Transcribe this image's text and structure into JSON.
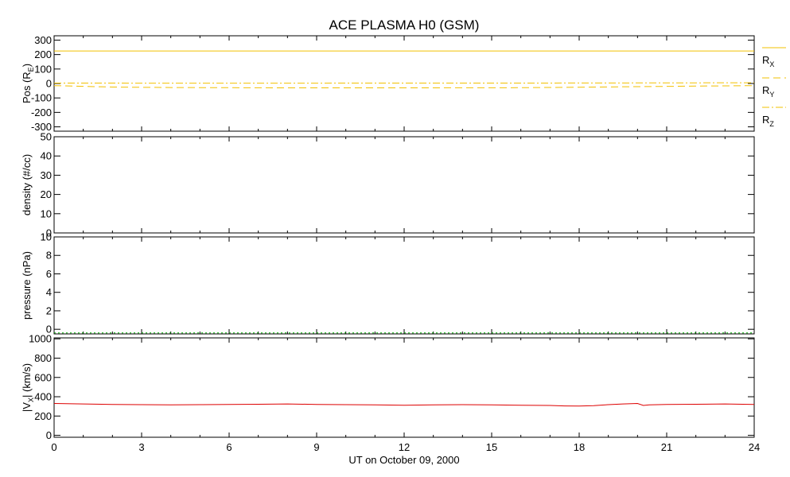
{
  "title": "ACE PLASMA H0 (GSM)",
  "xlabel": "UT on October 09, 2000",
  "x_ticks": [
    "0",
    "3",
    "6",
    "9",
    "12",
    "15",
    "18",
    "21",
    "24"
  ],
  "colors": {
    "gold": "#f2c000",
    "green": "#00b000",
    "red": "#dd0000"
  },
  "chart_data": [
    {
      "type": "line",
      "panel": "position",
      "ylabel": "Pos (R",
      "ylabel_sub": "E",
      "ylabel_tail": ")",
      "xlim": [
        0,
        24
      ],
      "ylim": [
        -330,
        330
      ],
      "y_ticks": [
        "300",
        "200",
        "100",
        "0",
        "-100",
        "-200",
        "-300"
      ],
      "y_tick_values": [
        300,
        200,
        100,
        0,
        -100,
        -200,
        -300
      ],
      "series": [
        {
          "name": "R",
          "sub": "X",
          "style": "solid",
          "color": "#f2c000",
          "x": [
            0,
            6,
            12,
            18,
            24
          ],
          "y": [
            225,
            225,
            225,
            225,
            225
          ]
        },
        {
          "name": "R",
          "sub": "Y",
          "style": "dashed",
          "color": "#f2c000",
          "x": [
            0,
            2,
            4,
            8,
            12,
            16,
            18,
            20,
            22,
            24
          ],
          "y": [
            -15,
            -25,
            -28,
            -30,
            -30,
            -29,
            -26,
            -22,
            -18,
            -15
          ]
        },
        {
          "name": "R",
          "sub": "Z",
          "style": "dashdot",
          "color": "#f2c000",
          "x": [
            0,
            4,
            8,
            12,
            16,
            20,
            24
          ],
          "y": [
            3,
            2,
            2,
            3,
            3,
            4,
            5
          ]
        }
      ]
    },
    {
      "type": "line",
      "panel": "density",
      "ylabel": "density (#/cc)",
      "xlim": [
        0,
        24
      ],
      "ylim": [
        0,
        50
      ],
      "y_ticks": [
        "50",
        "40",
        "30",
        "20",
        "10",
        "0"
      ],
      "y_tick_values": [
        50,
        40,
        30,
        20,
        10,
        0
      ],
      "series": []
    },
    {
      "type": "line",
      "panel": "pressure",
      "ylabel": "pressure (nPa)",
      "xlim": [
        0,
        24
      ],
      "ylim": [
        -0.5,
        10
      ],
      "y_ticks": [
        "10",
        "8",
        "6",
        "4",
        "2",
        "0"
      ],
      "y_tick_values": [
        10,
        8,
        6,
        4,
        2,
        0
      ],
      "series": [
        {
          "style": "dotted",
          "color": "#00b000",
          "x": [
            0,
            24
          ],
          "y": [
            -0.4,
            -0.4
          ]
        }
      ]
    },
    {
      "type": "line",
      "panel": "velocity",
      "ylabel": "|V",
      "ylabel_sub": "X",
      "ylabel_tail": "| (km/s)",
      "xlim": [
        0,
        24
      ],
      "ylim": [
        -20,
        1010
      ],
      "y_ticks": [
        "1000",
        "800",
        "600",
        "400",
        "200",
        "0"
      ],
      "y_tick_values": [
        1000,
        800,
        600,
        400,
        200,
        0
      ],
      "series": [
        {
          "style": "solid",
          "color": "#dd0000",
          "x": [
            0,
            1,
            2,
            3,
            4,
            5,
            6,
            7,
            8,
            9,
            10,
            11,
            12,
            13,
            14,
            15,
            16,
            17,
            17.5,
            18,
            18.5,
            19,
            19.5,
            20,
            20.2,
            20.4,
            21,
            22,
            23,
            24
          ],
          "y": [
            330,
            325,
            320,
            318,
            315,
            318,
            320,
            322,
            325,
            320,
            318,
            315,
            312,
            315,
            318,
            315,
            312,
            310,
            305,
            303,
            308,
            318,
            325,
            330,
            310,
            315,
            320,
            322,
            325,
            320
          ]
        }
      ]
    }
  ]
}
